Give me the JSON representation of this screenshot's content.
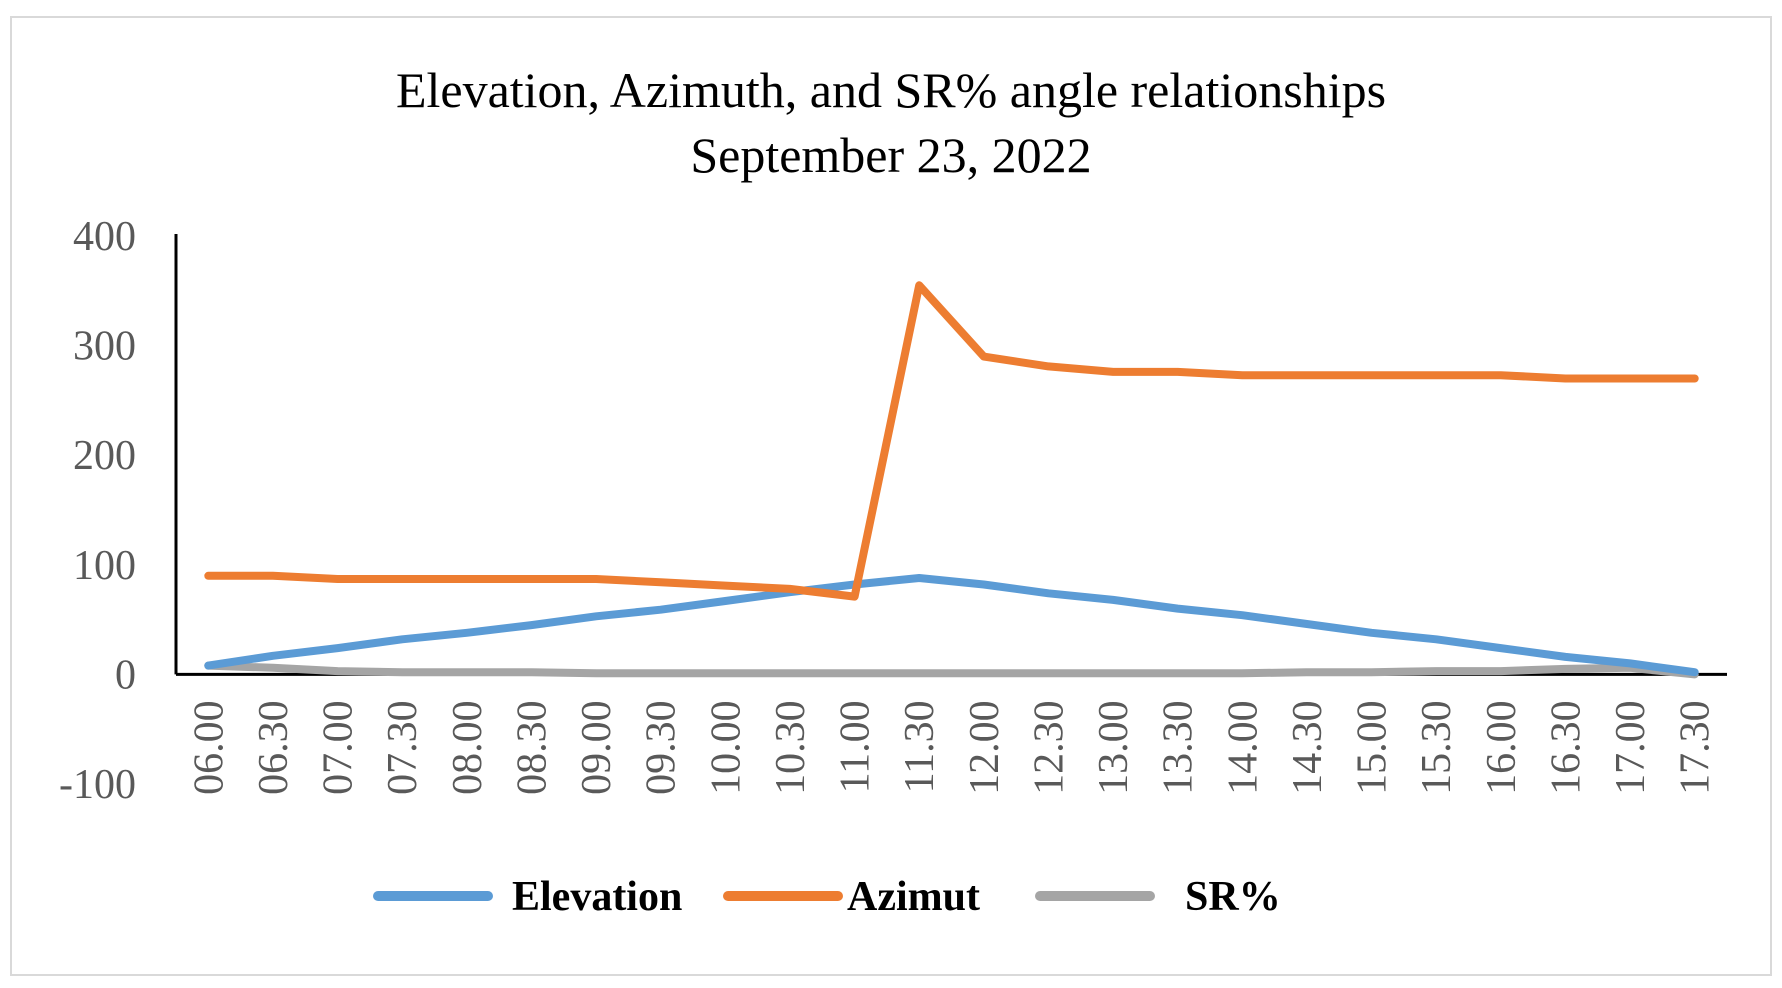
{
  "chart_data": {
    "type": "line",
    "title": "Elevation, Azimuth, and SR% angle relationships",
    "subtitle": "September 23, 2022",
    "xlabel": "",
    "ylabel": "",
    "ylim": [
      -100,
      400
    ],
    "yticks": [
      -100,
      0,
      100,
      200,
      300,
      400
    ],
    "grid": false,
    "legend_position": "bottom",
    "categories": [
      "06.00",
      "06.30",
      "07.00",
      "07.30",
      "08.00",
      "08.30",
      "09.00",
      "09.30",
      "10.00",
      "10.30",
      "11.00",
      "11.30",
      "12.00",
      "12.30",
      "13.00",
      "13.30",
      "14.00",
      "14.30",
      "15.00",
      "15.30",
      "16.00",
      "16.30",
      "17.00",
      "17.30"
    ],
    "series": [
      {
        "name": "Elevation",
        "color": "#5b9bd5",
        "values": [
          8,
          17,
          24,
          32,
          38,
          45,
          53,
          59,
          67,
          75,
          82,
          88,
          82,
          74,
          68,
          60,
          54,
          46,
          38,
          32,
          24,
          16,
          10,
          2
        ]
      },
      {
        "name": "Azimut",
        "color": "#ed7d31",
        "values": [
          90,
          90,
          87,
          87,
          87,
          87,
          87,
          84,
          81,
          78,
          71,
          355,
          290,
          281,
          276,
          276,
          273,
          273,
          273,
          273,
          273,
          270,
          270,
          270
        ]
      },
      {
        "name": "SR%",
        "color": "#a5a5a5",
        "values": [
          8,
          6,
          3,
          2,
          2,
          2,
          1,
          1,
          1,
          1,
          1,
          1,
          1,
          1,
          1,
          1,
          1,
          2,
          2,
          3,
          3,
          5,
          6,
          0
        ]
      }
    ]
  }
}
